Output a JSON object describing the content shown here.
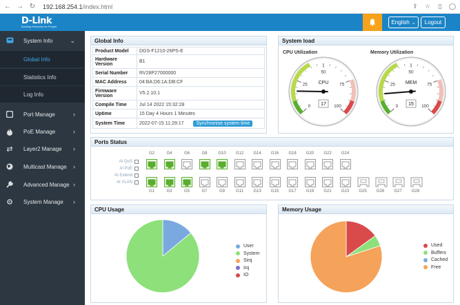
{
  "browser": {
    "url_host": "192.168.254.1",
    "url_path": "/index.html"
  },
  "header": {
    "logo": "D-Link",
    "logo_tagline": "Building Networks for People",
    "language": "English",
    "logout": "Logout"
  },
  "sidebar": {
    "items": [
      {
        "label": "System Info",
        "icon": "monitor-icon"
      },
      {
        "label": "Port Manage",
        "icon": "square-icon"
      },
      {
        "label": "PoE Manage",
        "icon": "flame-icon"
      },
      {
        "label": "Layer2 Manage",
        "icon": "repeat-icon"
      },
      {
        "label": "Multicast Manage",
        "icon": "globe-icon"
      },
      {
        "label": "Advanced Manage",
        "icon": "wrench-icon"
      },
      {
        "label": "System Manage",
        "icon": "gear-icon"
      }
    ],
    "subitems": [
      {
        "label": "Global Info",
        "active": true
      },
      {
        "label": "Statistics Info",
        "active": false
      },
      {
        "label": "Log Info",
        "active": false
      }
    ]
  },
  "global_info": {
    "title": "Global Info",
    "rows": [
      {
        "key": "Product Model",
        "value": "DGS-F1210-26PS-E"
      },
      {
        "key": "Hardware Version",
        "value": "B1"
      },
      {
        "key": "Serial Number",
        "value": "RV28P27000000"
      },
      {
        "key": "MAC Address",
        "value": "04:BA:D6:1A:DB:CF"
      },
      {
        "key": "Firmware Version",
        "value": "V5.2.10.1"
      },
      {
        "key": "Compile Time",
        "value": "Jul 14 2022 15:32:28"
      },
      {
        "key": "Uptime",
        "value": "15 Day 4 Hours 1 Minutes"
      },
      {
        "key": "System Time",
        "value": "2022-07-15 11:29:17"
      }
    ],
    "sync_button": "Synchronise system time"
  },
  "system_load": {
    "title": "System load",
    "cpu": {
      "label": "CPU Utilization",
      "name": "CPU",
      "value": 17
    },
    "mem": {
      "label": "Memory Utilization",
      "name": "MEM",
      "value": 15
    },
    "ticks": [
      "0",
      "25",
      "50",
      "75",
      "100"
    ]
  },
  "ports_status": {
    "title": "Ports Status",
    "labels": [
      "AI QoS",
      "AI PoE",
      "AI Extend",
      "AI VLAN"
    ],
    "top_numbers": [
      "G2",
      "G4",
      "G6",
      "G8",
      "G10",
      "G12",
      "G14",
      "G16",
      "G18",
      "G20",
      "G22",
      "G24"
    ],
    "bottom_numbers": [
      "G1",
      "G3",
      "G5",
      "G7",
      "G9",
      "G11",
      "G13",
      "G15",
      "G17",
      "G19",
      "G21",
      "G23",
      "G25",
      "G26",
      "G27",
      "G28"
    ],
    "top_active": [
      true,
      true,
      false,
      true,
      true,
      false,
      false,
      false,
      false,
      false,
      false,
      false
    ],
    "bottom_active": [
      true,
      true,
      true,
      false,
      false,
      false,
      false,
      false,
      false,
      false,
      false,
      false,
      false,
      false,
      false,
      false
    ],
    "colors": {
      "active": "#5aae2e",
      "inactive": "#9a9a9a"
    }
  },
  "cpu_usage": {
    "title": "CPU Usage",
    "legend": [
      {
        "name": "User",
        "color": "#7aa9e0"
      },
      {
        "name": "System",
        "color": "#8ee07a"
      },
      {
        "name": "Sirq",
        "color": "#f5a25a"
      },
      {
        "name": "Irq",
        "color": "#7e6fcf"
      },
      {
        "name": "IO",
        "color": "#d94a4a"
      }
    ],
    "values": [
      14,
      86,
      0,
      0,
      0
    ]
  },
  "memory_usage": {
    "title": "Memory Usage",
    "legend": [
      {
        "name": "Used",
        "color": "#d94a4a"
      },
      {
        "name": "Buffers",
        "color": "#8ee07a"
      },
      {
        "name": "Cached",
        "color": "#7aa9e0"
      },
      {
        "name": "Free",
        "color": "#f5a25a"
      }
    ],
    "values": [
      15,
      5,
      0,
      80
    ]
  }
}
